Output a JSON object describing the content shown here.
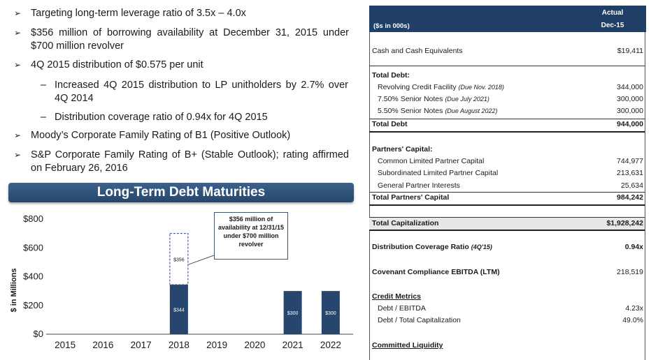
{
  "bullets": [
    {
      "marker": "➢",
      "text": "Targeting long-term leverage ratio of 3.5x – 4.0x"
    },
    {
      "marker": "➢",
      "text": "$356 million of borrowing availability at December 31, 2015 under $700 million revolver"
    },
    {
      "marker": "➢",
      "text": "4Q 2015 distribution of $0.575 per unit"
    },
    {
      "marker": "–",
      "text": "Increased 4Q 2015 distribution to LP unitholders by 2.7% over 4Q 2014"
    },
    {
      "marker": "–",
      "text": "Distribution coverage ratio of 0.94x for 4Q 2015"
    },
    {
      "marker": "➢",
      "text": "Moody’s Corporate Family Rating of B1 (Positive Outlook)"
    },
    {
      "marker": "➢",
      "text": "S&P Corporate Family Rating of B+ (Stable Outlook); rating affirmed on February 26, 2016"
    }
  ],
  "chart_data": {
    "type": "bar",
    "title": "Long-Term Debt Maturities",
    "ylabel": "$ in Millions",
    "ylim": [
      0,
      800
    ],
    "yticks": [
      0,
      200,
      400,
      600,
      800
    ],
    "ytick_labels": [
      "$0",
      "$200",
      "$400",
      "$600",
      "$800"
    ],
    "categories": [
      "2015",
      "2016",
      "2017",
      "2018",
      "2019",
      "2020",
      "2021",
      "2022"
    ],
    "series": [
      {
        "values": [
          0,
          0,
          0,
          344,
          0,
          0,
          300,
          300
        ],
        "labels": [
          "",
          "",
          "",
          "$344",
          "",
          "",
          "$300",
          "$300"
        ]
      },
      {
        "values": [
          0,
          0,
          0,
          356,
          0,
          0,
          0,
          0
        ],
        "labels": [
          "",
          "",
          "",
          "$356",
          "",
          "",
          "",
          ""
        ]
      }
    ],
    "annotation": "$356 million of availability at 12/31/15 under $700 million revolver",
    "grid": false,
    "colors": {
      "bar": "#26466d",
      "undrawn_border": "#26466d"
    }
  },
  "table": {
    "units": "($s in 000s)",
    "col_header_1": "Actual",
    "col_header_2": "Dec-15",
    "cash": {
      "label": "Cash and Cash Equivalents",
      "value": "$19,411"
    },
    "total_debt_header": "Total Debt:",
    "debt_items": [
      {
        "label": "Revolving Credit Facility",
        "note": "(Due Nov. 2018)",
        "value": "344,000"
      },
      {
        "label": "7.50% Senior Notes",
        "note": "(Due July 2021)",
        "value": "300,000"
      },
      {
        "label": "5.50% Senior Notes",
        "note": "(Due August 2022)",
        "value": "300,000"
      }
    ],
    "total_debt": {
      "label": "Total Debt",
      "value": "944,000"
    },
    "partners_header": "Partners' Capital:",
    "partners_items": [
      {
        "label": "Common Limited Partner Capital",
        "value": "744,977"
      },
      {
        "label": "Subordinated Limited Partner Capital",
        "value": "213,631"
      },
      {
        "label": "General Partner Interests",
        "value": "25,634"
      }
    ],
    "total_partners": {
      "label": "Total Partners' Capital",
      "value": "984,242"
    },
    "total_cap": {
      "label": "Total Capitalization",
      "value": "$1,928,242"
    },
    "coverage": {
      "label": "Distribution Coverage Ratio",
      "note": "(4Q'15)",
      "value": "0.94x"
    },
    "ebitda": {
      "label": "Covenant Compliance EBITDA (LTM)",
      "value": "218,519"
    },
    "credit_header": "Credit Metrics",
    "credit_items": [
      {
        "label": "Debt / EBITDA",
        "value": "4.23x"
      },
      {
        "label": "Debt / Total Capitalization",
        "value": "49.0%"
      }
    ],
    "liquidity_header": "Committed Liquidity"
  }
}
